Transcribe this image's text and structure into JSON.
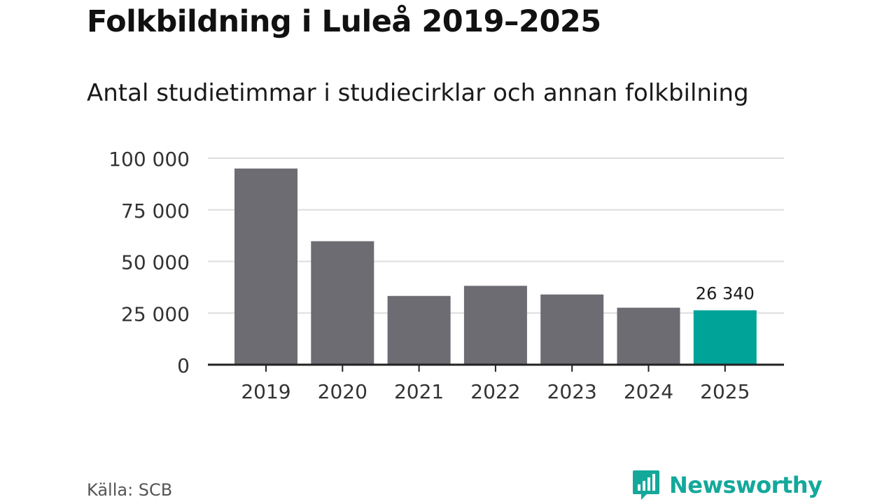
{
  "header": {
    "title": "Folkbildning i Luleå 2019–2025",
    "subtitle": "Antal studietimmar i studiecirklar och annan folkbilning"
  },
  "footer": {
    "source": "Källa: SCB",
    "brand": "Newsworthy",
    "brand_icon": "bar-chart-speech-bubble-icon"
  },
  "colors": {
    "bar": "#6d6c72",
    "highlight": "#00a398",
    "grid": "#dddddd",
    "axis": "#222222",
    "brand": "#14a89a"
  },
  "chart_data": {
    "type": "bar",
    "categories": [
      "2019",
      "2020",
      "2021",
      "2022",
      "2023",
      "2024",
      "2025"
    ],
    "values": [
      95000,
      59800,
      33300,
      38200,
      34000,
      27600,
      26340
    ],
    "highlight_index": 6,
    "data_labels": [
      {
        "index": 6,
        "text": "26 340"
      }
    ],
    "ylim": [
      0,
      100000
    ],
    "yticks": [
      0,
      25000,
      50000,
      75000,
      100000
    ],
    "ytick_labels": [
      "0",
      "25 000",
      "50 000",
      "75 000",
      "100 000"
    ],
    "xlabel": "",
    "ylabel": "",
    "grid": true
  }
}
